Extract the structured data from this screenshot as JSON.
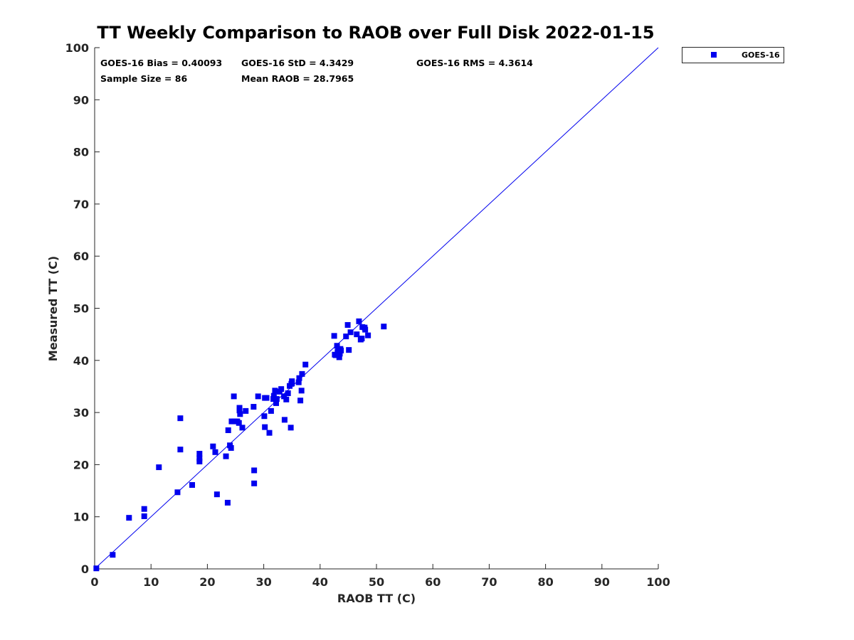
{
  "chart_data": {
    "type": "scatter",
    "title": "TT Weekly Comparison to RAOB over Full Disk 2022-01-15",
    "xlabel": "RAOB TT (C)",
    "ylabel": "Measured TT (C)",
    "xlim": [
      0,
      100
    ],
    "ylim": [
      0,
      100
    ],
    "xticks": [
      "0",
      "10",
      "20",
      "30",
      "40",
      "50",
      "60",
      "70",
      "80",
      "90",
      "100"
    ],
    "yticks": [
      "0",
      "10",
      "20",
      "30",
      "40",
      "50",
      "60",
      "70",
      "80",
      "90",
      "100"
    ],
    "grid": false,
    "legend_position": "outside-top-right",
    "marker_color": "#0000ee",
    "reference_line": {
      "name": "1:1 line",
      "x": [
        0,
        100
      ],
      "y": [
        0,
        100
      ],
      "color": "#0000ee"
    },
    "stats": {
      "bias": "GOES-16 Bias = 0.40093",
      "std": "GOES-16 StD = 4.3429",
      "rms": "GOES-16 RMS = 4.3614",
      "sample": "Sample Size = 86",
      "mean": "Mean RAOB = 28.7965"
    },
    "series": [
      {
        "name": "GOES-16",
        "marker": "square",
        "x": [
          0.3,
          3.2,
          6.1,
          8.8,
          8.8,
          11.4,
          14.7,
          15.2,
          15.2,
          17.3,
          18.6,
          18.6,
          18.6,
          21.0,
          21.4,
          21.7,
          23.3,
          23.6,
          23.7,
          24.0,
          24.2,
          24.3,
          24.7,
          24.8,
          25.3,
          25.6,
          25.7,
          25.7,
          25.8,
          26.2,
          26.8,
          28.2,
          28.3,
          28.3,
          29.0,
          30.1,
          30.2,
          30.2,
          30.5,
          31.0,
          31.3,
          31.7,
          31.8,
          32.0,
          32.2,
          32.3,
          32.8,
          33.1,
          33.6,
          33.7,
          34.0,
          34.3,
          34.6,
          34.8,
          34.9,
          35.0,
          36.2,
          36.3,
          36.5,
          36.7,
          36.8,
          37.4,
          42.5,
          42.6,
          43.0,
          43.1,
          43.2,
          43.4,
          43.5,
          43.6,
          43.7,
          44.6,
          44.9,
          45.1,
          45.4,
          46.5,
          46.9,
          47.2,
          47.4,
          47.5,
          48.0,
          48.5,
          51.3,
          47.9,
          42.8,
          35.0
        ],
        "y": [
          0.1,
          2.7,
          9.8,
          11.5,
          10.1,
          19.5,
          14.7,
          28.9,
          22.9,
          16.1,
          22.1,
          21.2,
          20.6,
          23.5,
          22.4,
          14.3,
          21.6,
          12.7,
          26.6,
          23.7,
          23.2,
          28.3,
          33.1,
          28.3,
          28.3,
          28.0,
          30.9,
          30.4,
          29.7,
          27.1,
          30.3,
          31.1,
          18.9,
          16.4,
          33.1,
          29.3,
          27.2,
          32.8,
          32.8,
          26.1,
          30.3,
          32.6,
          33.2,
          34.2,
          31.8,
          32.6,
          34.0,
          34.5,
          33.1,
          28.6,
          32.5,
          33.7,
          35.1,
          27.1,
          35.5,
          36.0,
          35.8,
          36.6,
          32.3,
          34.2,
          37.4,
          39.2,
          44.7,
          41.1,
          42.8,
          41.6,
          42.1,
          40.6,
          41.3,
          42.2,
          41.9,
          44.6,
          46.8,
          42.0,
          45.4,
          45.0,
          47.5,
          44.0,
          44.2,
          46.4,
          45.9,
          44.8,
          46.5,
          46.3,
          41.0,
          35.6
        ]
      }
    ]
  }
}
